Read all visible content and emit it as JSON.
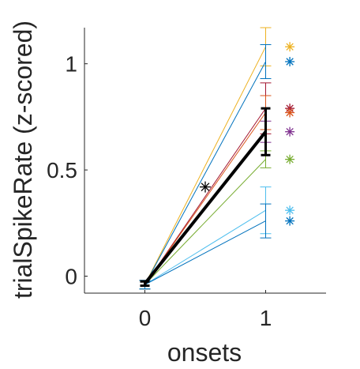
{
  "chart_data": {
    "type": "line",
    "xlabel": "onsets",
    "ylabel": "trialSpikeRate (z-scored)",
    "x": [
      0,
      1
    ],
    "xticks": [
      "0",
      "1"
    ],
    "xlim": [
      -0.5,
      1.5
    ],
    "yticks": [
      "0",
      "0.5",
      "1"
    ],
    "ytick_values": [
      0,
      0.5,
      1
    ],
    "ylim": [
      -0.08,
      1.17
    ],
    "grid": false,
    "series": [
      {
        "color": "#EDB120",
        "values": [
          -0.04,
          1.08
        ],
        "err_up": [
          0.02,
          0.09
        ],
        "err_down": [
          0.02,
          0.09
        ],
        "marker_y": 1.08
      },
      {
        "color": "#0072BD",
        "values": [
          -0.04,
          1.01
        ],
        "err_up": [
          0.02,
          0.08
        ],
        "err_down": [
          0.02,
          0.08
        ],
        "marker_y": 1.01
      },
      {
        "color": "#A2142F",
        "values": [
          -0.04,
          0.79
        ],
        "err_up": [
          0.02,
          0.12
        ],
        "err_down": [
          0.02,
          0.12
        ],
        "marker_y": 0.79
      },
      {
        "color": "#D95319",
        "values": [
          -0.04,
          0.77
        ],
        "err_up": [
          0.02,
          0.08
        ],
        "err_down": [
          0.02,
          0.08
        ],
        "marker_y": 0.77
      },
      {
        "color": "#7E2F8E",
        "values": [
          -0.04,
          0.68
        ],
        "err_up": [
          0.02,
          0.05
        ],
        "err_down": [
          0.02,
          0.05
        ],
        "marker_y": 0.68
      },
      {
        "color": "#77AC30",
        "values": [
          -0.04,
          0.55
        ],
        "err_up": [
          0.02,
          0.04
        ],
        "err_down": [
          0.02,
          0.04
        ],
        "marker_y": 0.55
      },
      {
        "color": "#4DBEEE",
        "values": [
          -0.04,
          0.31
        ],
        "err_up": [
          0.02,
          0.11
        ],
        "err_down": [
          0.02,
          0.11
        ],
        "marker_y": 0.31
      },
      {
        "color": "#0072BD",
        "values": [
          -0.04,
          0.26
        ],
        "err_up": [
          0.02,
          0.08
        ],
        "err_down": [
          0.02,
          0.08
        ],
        "marker_y": 0.26
      }
    ],
    "mean_series": {
      "color": "#000000",
      "values": [
        -0.035,
        0.68
      ],
      "err": [
        0.01,
        0.11
      ]
    },
    "annotation": {
      "symbol": "*",
      "x": 0.5,
      "y": 0.42,
      "color": "#000000"
    }
  }
}
